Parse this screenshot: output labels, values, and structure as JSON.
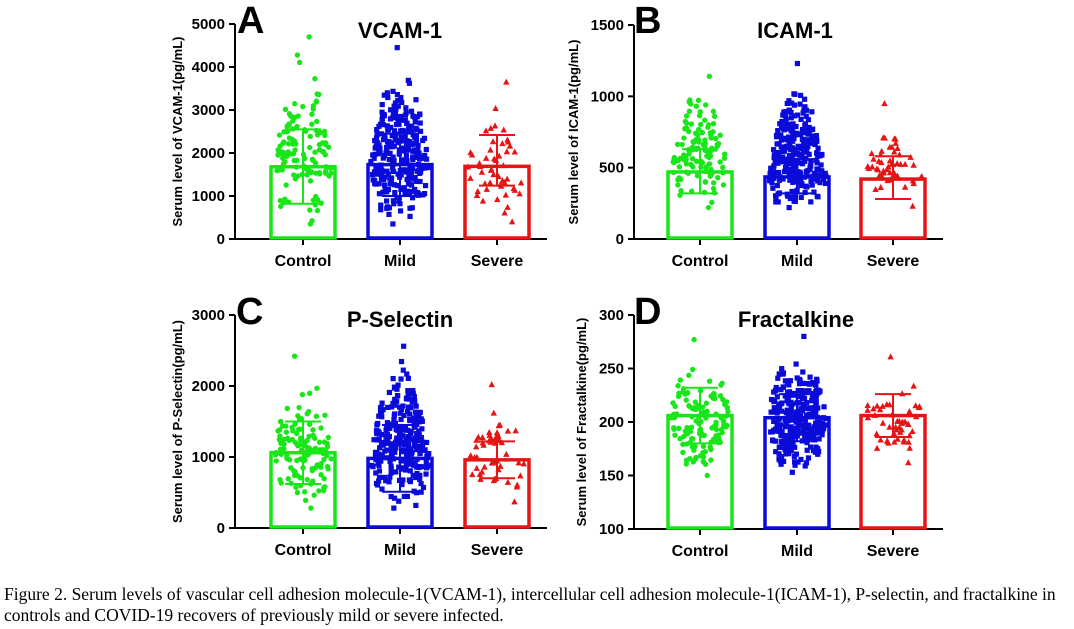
{
  "chart_data": [
    {
      "panel": "A",
      "type": "bar",
      "title": "VCAM-1",
      "ylabel": "Serum level of VCAM-1(pg/mL)",
      "xlabel": "",
      "categories": [
        "Control",
        "Mild",
        "Severe"
      ],
      "values": [
        1680,
        1730,
        1690
      ],
      "error_upper": [
        2550,
        2450,
        2420
      ],
      "error_lower": [
        820,
        1000,
        1240
      ],
      "ylim": [
        0,
        5000
      ],
      "yticks": [
        0,
        1000,
        2000,
        3000,
        4000,
        5000
      ],
      "point_counts": [
        125,
        280,
        50
      ],
      "point_ranges": [
        [
          350,
          4700
        ],
        [
          350,
          4450
        ],
        [
          400,
          3650
        ]
      ],
      "colors": [
        "#19e619",
        "#0b0bd9",
        "#e61414"
      ],
      "markers": [
        "circle",
        "square",
        "triangle"
      ]
    },
    {
      "panel": "B",
      "type": "bar",
      "title": "ICAM-1",
      "ylabel": "Serum level of ICAM-1(pg/mL)",
      "xlabel": "",
      "categories": [
        "Control",
        "Mild",
        "Severe"
      ],
      "values": [
        470,
        435,
        420
      ],
      "error_upper": [
        630,
        560,
        580
      ],
      "error_lower": [
        320,
        320,
        280
      ],
      "ylim": [
        0,
        1500
      ],
      "yticks": [
        0,
        500,
        1000,
        1500
      ],
      "point_counts": [
        125,
        280,
        50
      ],
      "point_ranges": [
        [
          220,
          1140
        ],
        [
          220,
          1230
        ],
        [
          230,
          950
        ]
      ],
      "colors": [
        "#19e619",
        "#0b0bd9",
        "#e61414"
      ],
      "markers": [
        "circle",
        "square",
        "triangle"
      ]
    },
    {
      "panel": "C",
      "type": "bar",
      "title": "P-Selectin",
      "ylabel": "Serum level of P-Selectin(pg/mL)",
      "xlabel": "",
      "categories": [
        "Control",
        "Mild",
        "Severe"
      ],
      "values": [
        1060,
        980,
        960
      ],
      "error_upper": [
        1500,
        1450,
        1220
      ],
      "error_lower": [
        620,
        510,
        700
      ],
      "ylim": [
        0,
        3000
      ],
      "yticks": [
        0,
        1000,
        2000,
        3000
      ],
      "point_counts": [
        125,
        280,
        50
      ],
      "point_ranges": [
        [
          280,
          2420
        ],
        [
          280,
          2560
        ],
        [
          370,
          2020
        ]
      ],
      "colors": [
        "#19e619",
        "#0b0bd9",
        "#e61414"
      ],
      "markers": [
        "circle",
        "square",
        "triangle"
      ]
    },
    {
      "panel": "D",
      "type": "bar",
      "title": "Fractalkine",
      "ylabel": "Serum level of Fractalkine(pg/mL)",
      "xlabel": "",
      "categories": [
        "Control",
        "Mild",
        "Severe"
      ],
      "values": [
        206,
        204,
        206
      ],
      "error_upper": [
        232,
        226,
        226
      ],
      "error_lower": [
        180,
        182,
        186
      ],
      "ylim": [
        100,
        300
      ],
      "yticks": [
        100,
        150,
        200,
        250,
        300
      ],
      "point_counts": [
        125,
        280,
        50
      ],
      "point_ranges": [
        [
          150,
          277
        ],
        [
          153,
          280
        ],
        [
          162,
          261
        ]
      ],
      "colors": [
        "#19e619",
        "#0b0bd9",
        "#e61414"
      ],
      "markers": [
        "circle",
        "square",
        "triangle"
      ]
    }
  ],
  "caption": "Figure 2. Serum levels of vascular cell adhesion molecule-1(VCAM-1), intercellular cell adhesion molecule-1(ICAM-1), P-selectin, and fractalkine in controls and COVID-19 recovers of previously mild or severe infected."
}
